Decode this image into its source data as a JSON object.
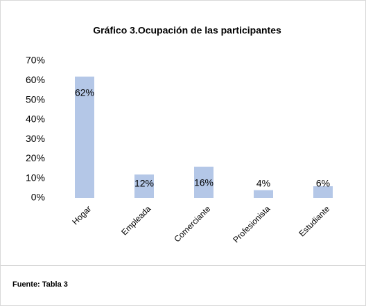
{
  "chart_data": {
    "type": "bar",
    "title": "Gráfico 3.Ocupación de las participantes",
    "categories": [
      "Hogar",
      "Empleada",
      "Comerciante",
      "Profesionista",
      "Estudiante"
    ],
    "values": [
      62,
      12,
      16,
      4,
      6
    ],
    "value_labels": [
      "62%",
      "12%",
      "16%",
      "4%",
      "6%"
    ],
    "color": "#b4c7e7",
    "ylim": [
      0,
      70
    ],
    "yticks": [
      {
        "value": 0,
        "label": "0%"
      },
      {
        "value": 10,
        "label": "10%"
      },
      {
        "value": 20,
        "label": "20%"
      },
      {
        "value": 30,
        "label": "30%"
      },
      {
        "value": 40,
        "label": "40%"
      },
      {
        "value": 50,
        "label": "50%"
      },
      {
        "value": 60,
        "label": "60%"
      },
      {
        "value": 70,
        "label": "70%"
      }
    ],
    "grid": false,
    "source": "Fuente: Tabla 3"
  }
}
